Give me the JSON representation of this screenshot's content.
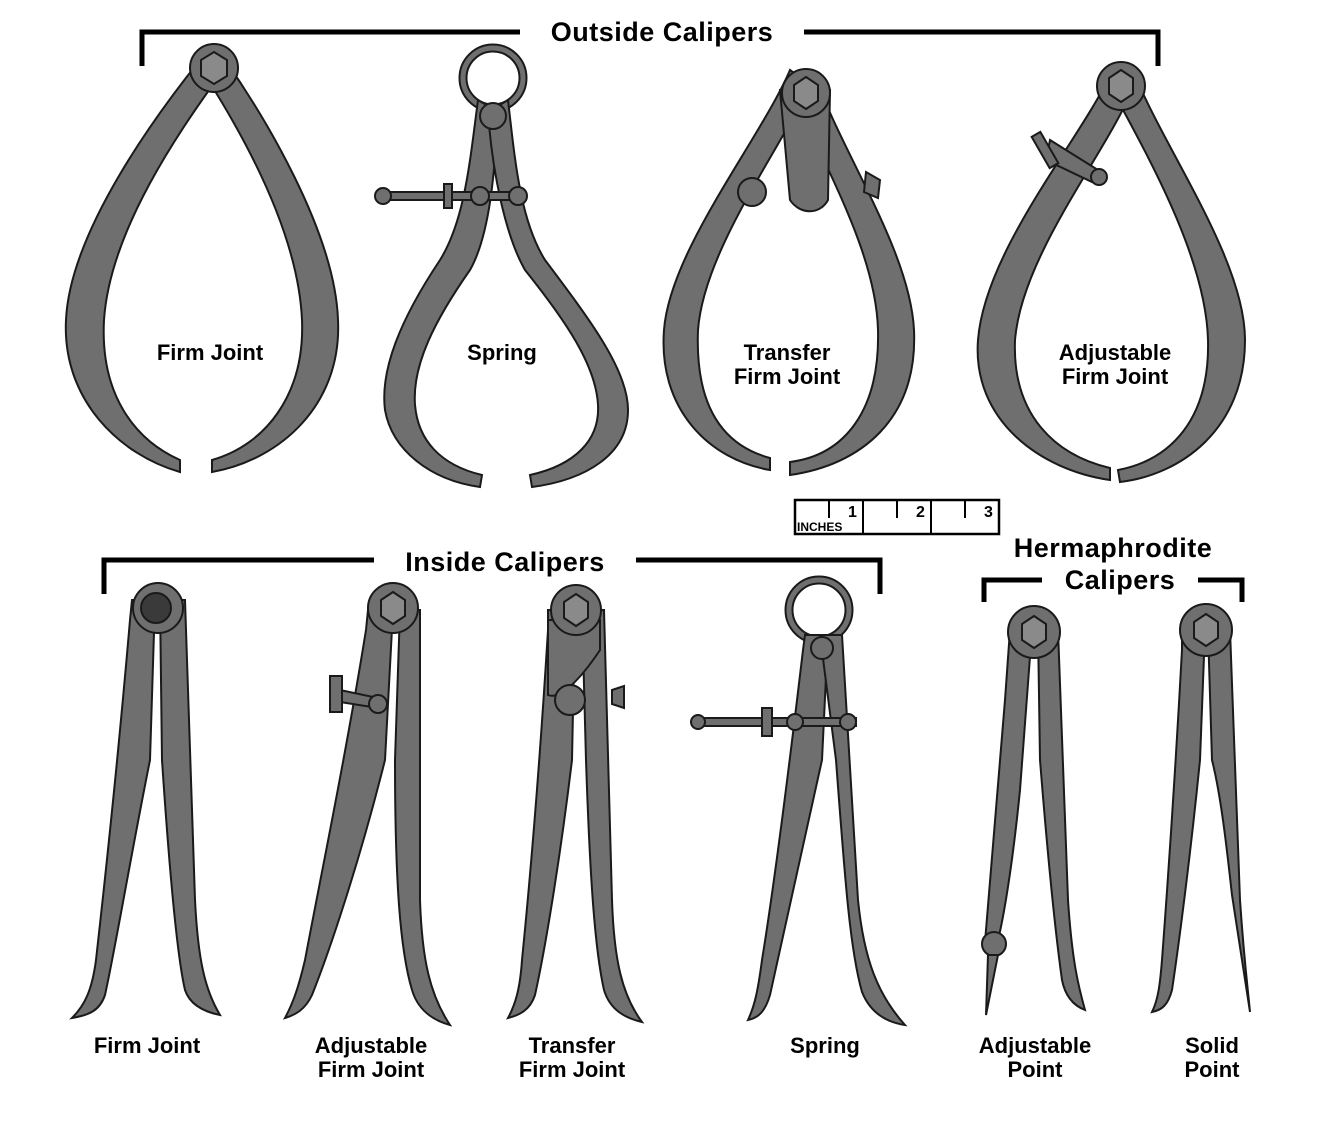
{
  "headings": {
    "outside": "Outside Calipers",
    "inside": "Inside Calipers",
    "hermaphrodite_line1": "Hermaphrodite",
    "hermaphrodite_line2": "Calipers"
  },
  "outside_calipers": [
    {
      "label": "Firm Joint"
    },
    {
      "label": "Spring"
    },
    {
      "label": "Transfer\nFirm Joint"
    },
    {
      "label": "Adjustable\nFirm Joint"
    }
  ],
  "inside_calipers": [
    {
      "label": "Firm Joint"
    },
    {
      "label": "Adjustable\nFirm Joint"
    },
    {
      "label": "Transfer\nFirm Joint"
    },
    {
      "label": "Spring"
    }
  ],
  "hermaphrodite_calipers": [
    {
      "label": "Adjustable\nPoint"
    },
    {
      "label": "Solid\nPoint"
    }
  ],
  "ruler": {
    "unit": "INCHES",
    "marks": [
      "1",
      "2",
      "3"
    ]
  },
  "colors": {
    "metal": "#6f6f6f",
    "outline": "#1a1a1a",
    "text": "#000000"
  }
}
